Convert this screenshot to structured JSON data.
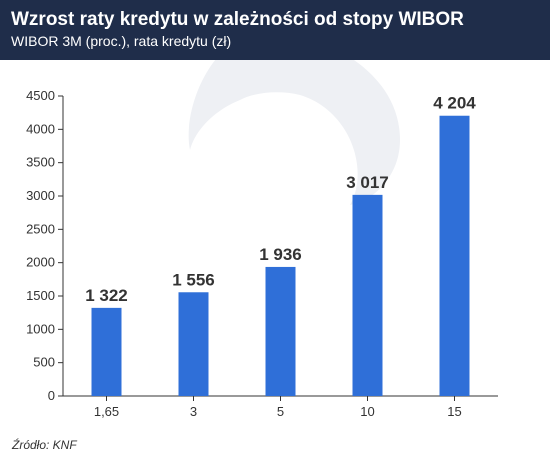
{
  "header": {
    "title": "Wzrost raty kredytu w zależności od stopy WIBOR",
    "subtitle": "WIBOR 3M (proc.), rata kredytu (zł)"
  },
  "source": "Źródło: KNF",
  "colors": {
    "header_bg": "#1f2d4a",
    "bar": "#2f6fd8",
    "label": "#333333",
    "axis": "#333333",
    "watermark": "#eef0f4"
  },
  "chart_data": {
    "type": "bar",
    "categories": [
      "1,65",
      "3",
      "5",
      "10",
      "15"
    ],
    "values": [
      1322,
      1556,
      1936,
      3017,
      4204
    ],
    "value_labels": [
      "1 322",
      "1 556",
      "1 936",
      "3 017",
      "4 204"
    ],
    "title": "Wzrost raty kredytu w zależności od stopy WIBOR",
    "subtitle": "WIBOR 3M (proc.), rata kredytu (zł)",
    "xlabel": "",
    "ylabel": "",
    "ylim": [
      0,
      4500
    ],
    "yticks": [
      0,
      500,
      1000,
      1500,
      2000,
      2500,
      3000,
      3500,
      4000,
      4500
    ],
    "grid": false,
    "legend": "none"
  }
}
